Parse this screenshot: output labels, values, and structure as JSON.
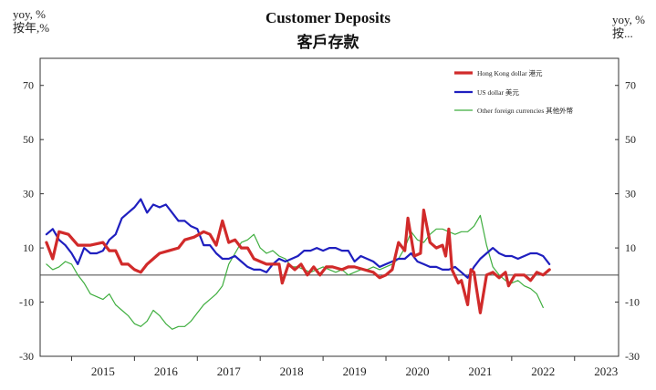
{
  "chart_data": {
    "type": "line",
    "title": "Customer Deposits",
    "subtitle": "客戶存款",
    "ylabel_left": [
      "yoy, %",
      "按年,%"
    ],
    "ylabel_right": [
      "yoy, %",
      "按..."
    ],
    "ylim": [
      -30,
      80
    ],
    "yticks": [
      -30,
      -10,
      10,
      30,
      50,
      70
    ],
    "xlim": [
      2014.5,
      2023.7
    ],
    "xticks": [
      "2015",
      "2016",
      "2017",
      "2018",
      "2019",
      "2020",
      "2021",
      "2022",
      "2023"
    ],
    "zero_line": 0,
    "legend_position": "top-right",
    "series": [
      {
        "name": "Hong Kong dollar 港元",
        "color": "#d12a2a",
        "points": [
          [
            2014.6,
            12
          ],
          [
            2014.7,
            6
          ],
          [
            2014.8,
            16
          ],
          [
            2014.95,
            15
          ],
          [
            2015.1,
            11
          ],
          [
            2015.3,
            11
          ],
          [
            2015.5,
            12
          ],
          [
            2015.6,
            9
          ],
          [
            2015.7,
            9
          ],
          [
            2015.8,
            4
          ],
          [
            2015.9,
            4
          ],
          [
            2016.0,
            2
          ],
          [
            2016.1,
            1
          ],
          [
            2016.2,
            4
          ],
          [
            2016.3,
            6
          ],
          [
            2016.4,
            8
          ],
          [
            2016.55,
            9
          ],
          [
            2016.7,
            10
          ],
          [
            2016.8,
            13
          ],
          [
            2016.95,
            14
          ],
          [
            2017.1,
            16
          ],
          [
            2017.2,
            15
          ],
          [
            2017.3,
            11
          ],
          [
            2017.4,
            20
          ],
          [
            2017.5,
            12
          ],
          [
            2017.6,
            13
          ],
          [
            2017.7,
            10
          ],
          [
            2017.8,
            10
          ],
          [
            2017.9,
            6
          ],
          [
            2018.0,
            5
          ],
          [
            2018.1,
            4
          ],
          [
            2018.2,
            4
          ],
          [
            2018.3,
            4
          ],
          [
            2018.35,
            -3
          ],
          [
            2018.45,
            4
          ],
          [
            2018.55,
            2
          ],
          [
            2018.65,
            4
          ],
          [
            2018.75,
            0
          ],
          [
            2018.85,
            3
          ],
          [
            2018.95,
            0
          ],
          [
            2019.05,
            3
          ],
          [
            2019.15,
            3
          ],
          [
            2019.3,
            2
          ],
          [
            2019.4,
            3
          ],
          [
            2019.5,
            3
          ],
          [
            2019.65,
            2
          ],
          [
            2019.8,
            1
          ],
          [
            2019.9,
            -1
          ],
          [
            2020.0,
            0
          ],
          [
            2020.1,
            2
          ],
          [
            2020.2,
            12
          ],
          [
            2020.3,
            9
          ],
          [
            2020.35,
            21
          ],
          [
            2020.45,
            7
          ],
          [
            2020.55,
            8
          ],
          [
            2020.6,
            24
          ],
          [
            2020.7,
            12
          ],
          [
            2020.8,
            10
          ],
          [
            2020.9,
            11
          ],
          [
            2020.95,
            7
          ],
          [
            2021.0,
            17
          ],
          [
            2021.05,
            2
          ],
          [
            2021.15,
            -3
          ],
          [
            2021.2,
            -2
          ],
          [
            2021.3,
            -11
          ],
          [
            2021.35,
            2
          ],
          [
            2021.4,
            1
          ],
          [
            2021.5,
            -14
          ],
          [
            2021.6,
            0
          ],
          [
            2021.7,
            1
          ],
          [
            2021.8,
            -1
          ],
          [
            2021.9,
            1
          ],
          [
            2021.95,
            -4
          ],
          [
            2022.05,
            0
          ],
          [
            2022.2,
            0
          ],
          [
            2022.3,
            -2
          ],
          [
            2022.4,
            1
          ],
          [
            2022.5,
            0
          ],
          [
            2022.6,
            2
          ]
        ]
      },
      {
        "name": "US dollar 美元",
        "color": "#1f1fbf",
        "points": [
          [
            2014.6,
            15
          ],
          [
            2014.7,
            17
          ],
          [
            2014.8,
            13
          ],
          [
            2014.9,
            11
          ],
          [
            2015.0,
            8
          ],
          [
            2015.1,
            4
          ],
          [
            2015.2,
            10
          ],
          [
            2015.3,
            8
          ],
          [
            2015.4,
            8
          ],
          [
            2015.5,
            9
          ],
          [
            2015.6,
            13
          ],
          [
            2015.7,
            15
          ],
          [
            2015.8,
            21
          ],
          [
            2015.9,
            23
          ],
          [
            2016.0,
            25
          ],
          [
            2016.1,
            28
          ],
          [
            2016.2,
            23
          ],
          [
            2016.3,
            26
          ],
          [
            2016.4,
            25
          ],
          [
            2016.5,
            26
          ],
          [
            2016.6,
            23
          ],
          [
            2016.7,
            20
          ],
          [
            2016.8,
            20
          ],
          [
            2016.9,
            18
          ],
          [
            2017.0,
            17
          ],
          [
            2017.1,
            11
          ],
          [
            2017.2,
            11
          ],
          [
            2017.3,
            8
          ],
          [
            2017.4,
            6
          ],
          [
            2017.5,
            6
          ],
          [
            2017.6,
            7
          ],
          [
            2017.7,
            5
          ],
          [
            2017.8,
            3
          ],
          [
            2017.9,
            2
          ],
          [
            2018.0,
            2
          ],
          [
            2018.1,
            1
          ],
          [
            2018.2,
            4
          ],
          [
            2018.3,
            6
          ],
          [
            2018.4,
            5
          ],
          [
            2018.5,
            6
          ],
          [
            2018.6,
            7
          ],
          [
            2018.7,
            9
          ],
          [
            2018.8,
            9
          ],
          [
            2018.9,
            10
          ],
          [
            2019.0,
            9
          ],
          [
            2019.1,
            10
          ],
          [
            2019.2,
            10
          ],
          [
            2019.3,
            9
          ],
          [
            2019.4,
            9
          ],
          [
            2019.5,
            5
          ],
          [
            2019.6,
            7
          ],
          [
            2019.7,
            6
          ],
          [
            2019.8,
            5
          ],
          [
            2019.9,
            3
          ],
          [
            2020.0,
            4
          ],
          [
            2020.1,
            5
          ],
          [
            2020.2,
            6
          ],
          [
            2020.3,
            6
          ],
          [
            2020.4,
            8
          ],
          [
            2020.5,
            5
          ],
          [
            2020.6,
            4
          ],
          [
            2020.7,
            3
          ],
          [
            2020.8,
            3
          ],
          [
            2020.9,
            2
          ],
          [
            2021.0,
            2
          ],
          [
            2021.1,
            3
          ],
          [
            2021.2,
            1
          ],
          [
            2021.3,
            -1
          ],
          [
            2021.4,
            3
          ],
          [
            2021.5,
            6
          ],
          [
            2021.6,
            8
          ],
          [
            2021.7,
            10
          ],
          [
            2021.8,
            8
          ],
          [
            2021.9,
            7
          ],
          [
            2022.0,
            7
          ],
          [
            2022.1,
            6
          ],
          [
            2022.2,
            7
          ],
          [
            2022.3,
            8
          ],
          [
            2022.4,
            8
          ],
          [
            2022.5,
            7
          ],
          [
            2022.6,
            4
          ]
        ]
      },
      {
        "name": "Other foreign currencies 其他外幣",
        "color": "#3fae3f",
        "points": [
          [
            2014.6,
            4
          ],
          [
            2014.7,
            2
          ],
          [
            2014.8,
            3
          ],
          [
            2014.9,
            5
          ],
          [
            2015.0,
            4
          ],
          [
            2015.1,
            0
          ],
          [
            2015.2,
            -3
          ],
          [
            2015.3,
            -7
          ],
          [
            2015.4,
            -8
          ],
          [
            2015.5,
            -9
          ],
          [
            2015.6,
            -7
          ],
          [
            2015.7,
            -11
          ],
          [
            2015.8,
            -13
          ],
          [
            2015.9,
            -15
          ],
          [
            2016.0,
            -18
          ],
          [
            2016.1,
            -19
          ],
          [
            2016.2,
            -17
          ],
          [
            2016.3,
            -13
          ],
          [
            2016.4,
            -15
          ],
          [
            2016.5,
            -18
          ],
          [
            2016.6,
            -20
          ],
          [
            2016.7,
            -19
          ],
          [
            2016.8,
            -19
          ],
          [
            2016.9,
            -17
          ],
          [
            2017.0,
            -14
          ],
          [
            2017.1,
            -11
          ],
          [
            2017.2,
            -9
          ],
          [
            2017.3,
            -7
          ],
          [
            2017.4,
            -4
          ],
          [
            2017.5,
            4
          ],
          [
            2017.6,
            8
          ],
          [
            2017.7,
            12
          ],
          [
            2017.8,
            13
          ],
          [
            2017.9,
            15
          ],
          [
            2018.0,
            10
          ],
          [
            2018.1,
            8
          ],
          [
            2018.2,
            9
          ],
          [
            2018.3,
            7
          ],
          [
            2018.4,
            6
          ],
          [
            2018.5,
            3
          ],
          [
            2018.6,
            3
          ],
          [
            2018.7,
            2
          ],
          [
            2018.8,
            1
          ],
          [
            2018.9,
            2
          ],
          [
            2019.0,
            3
          ],
          [
            2019.1,
            2
          ],
          [
            2019.2,
            1
          ],
          [
            2019.3,
            2
          ],
          [
            2019.4,
            0
          ],
          [
            2019.5,
            1
          ],
          [
            2019.6,
            2
          ],
          [
            2019.7,
            2
          ],
          [
            2019.8,
            3
          ],
          [
            2019.9,
            2
          ],
          [
            2020.0,
            3
          ],
          [
            2020.1,
            4
          ],
          [
            2020.2,
            6
          ],
          [
            2020.3,
            10
          ],
          [
            2020.4,
            16
          ],
          [
            2020.5,
            13
          ],
          [
            2020.6,
            12
          ],
          [
            2020.7,
            15
          ],
          [
            2020.8,
            17
          ],
          [
            2020.9,
            17
          ],
          [
            2021.0,
            16
          ],
          [
            2021.1,
            15
          ],
          [
            2021.2,
            16
          ],
          [
            2021.3,
            16
          ],
          [
            2021.4,
            18
          ],
          [
            2021.5,
            22
          ],
          [
            2021.6,
            11
          ],
          [
            2021.7,
            3
          ],
          [
            2021.8,
            0
          ],
          [
            2021.9,
            -2
          ],
          [
            2022.0,
            -3
          ],
          [
            2022.1,
            -2
          ],
          [
            2022.2,
            -4
          ],
          [
            2022.3,
            -5
          ],
          [
            2022.4,
            -7
          ],
          [
            2022.5,
            -12
          ]
        ]
      }
    ]
  }
}
